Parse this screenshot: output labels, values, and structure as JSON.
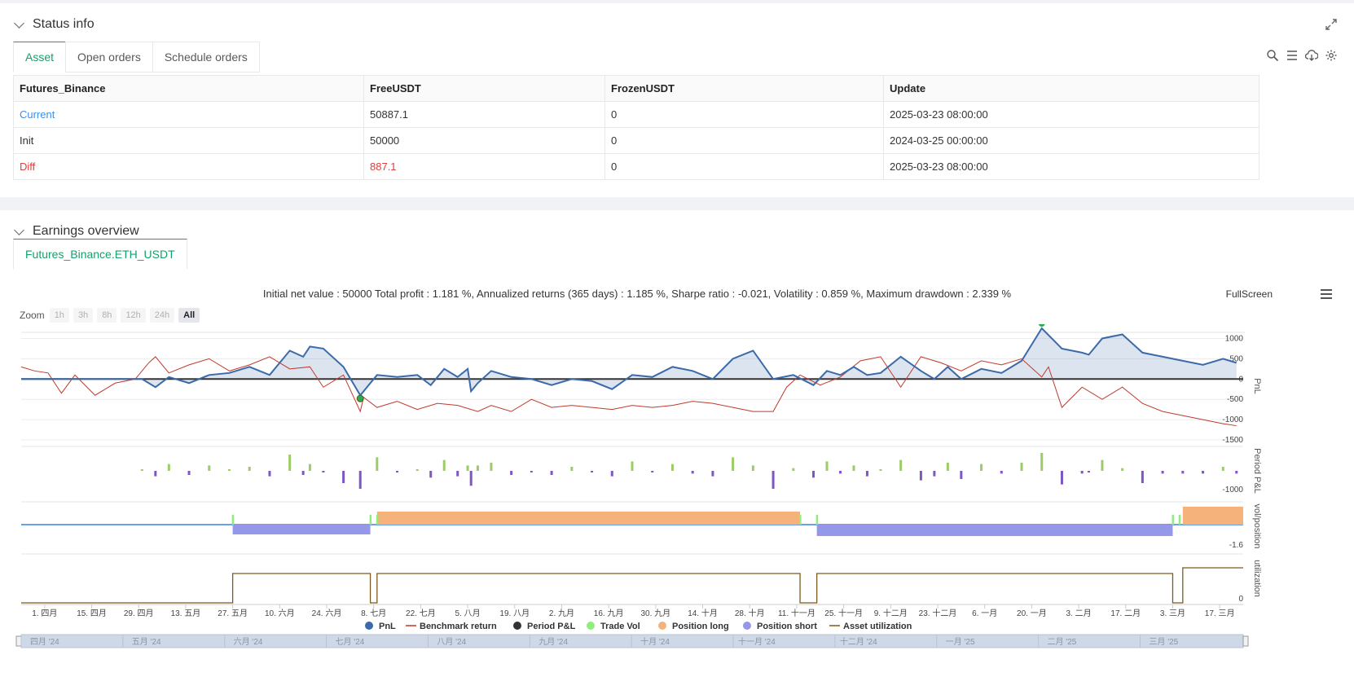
{
  "status": {
    "title": "Status info",
    "tabs": [
      "Asset",
      "Open orders",
      "Schedule orders"
    ],
    "table": {
      "headers": [
        "Futures_Binance",
        "FreeUSDT",
        "FrozenUSDT",
        "Update"
      ],
      "rows": [
        [
          "Current",
          "50887.1",
          "0",
          "2025-03-23 08:00:00"
        ],
        [
          "Init",
          "50000",
          "0",
          "2024-03-25 00:00:00"
        ],
        [
          "Diff",
          "887.1",
          "0",
          "2025-03-23 08:00:00"
        ]
      ]
    }
  },
  "earnings": {
    "title": "Earnings overview",
    "tab": "Futures_Binance.ETH_USDT",
    "summary": "Initial net value : 50000 Total profit : 1.181 %, Annualized returns (365 days) : 1.185 %, Sharpe ratio : -0.021, Volatility : 0.859 %, Maximum drawdown : 2.339 %",
    "fullscreen": "FullScreen",
    "zoom_label": "Zoom",
    "zoom_buttons": [
      "1h",
      "3h",
      "8h",
      "12h",
      "24h",
      "All"
    ]
  },
  "colors": {
    "accent": "#16a06b",
    "pnl": "#3b6aa8",
    "benchmark": "#c0392b",
    "long": "#f5b27a",
    "short": "#9597e8",
    "tradevol": "#90ee7e",
    "utilization": "#7a5c1e"
  },
  "chart_data": {
    "type": "line",
    "panels": [
      {
        "name": "PnL",
        "ticks": [
          1000,
          500,
          0,
          -500,
          -1000,
          -1500
        ],
        "ylim": [
          -1500,
          1150
        ]
      },
      {
        "name": "Period P&L",
        "ticks": [
          -1000
        ]
      },
      {
        "name": "vol/position",
        "ticks": [
          -1.6
        ]
      },
      {
        "name": "utilization",
        "ticks": [
          0
        ]
      }
    ],
    "x_ticks": [
      "1. 四月",
      "15. 四月",
      "29. 四月",
      "13. 五月",
      "27. 五月",
      "10. 六月",
      "24. 六月",
      "8. 七月",
      "22. 七月",
      "5. 八月",
      "19. 八月",
      "2. 九月",
      "16. 九月",
      "30. 九月",
      "14. 十月",
      "28. 十月",
      "11. 十一月",
      "25. 十一月",
      "9. 十二月",
      "23. 十二月",
      "6. 一月",
      "20. 一月",
      "3. 二月",
      "17. 二月",
      "3. 三月",
      "17. 三月"
    ],
    "navigator_labels": [
      "四月 '24",
      "五月 '24",
      "六月 '24",
      "七月 '24",
      "八月 '24",
      "九月 '24",
      "十月 '24",
      "十一月 '24",
      "十二月 '24",
      "一月 '25",
      "二月 '25",
      "三月 '25"
    ],
    "legend": [
      "PnL",
      "Benchmark return",
      "Period P&L",
      "Trade Vol",
      "Position long",
      "Position short",
      "Asset utilization"
    ],
    "series": [
      {
        "name": "PnL",
        "x_days": [
          0,
          36,
          40,
          44,
          50,
          56,
          62,
          68,
          74,
          80,
          84,
          86,
          90,
          96,
          101,
          106,
          112,
          118,
          122,
          126,
          130,
          133,
          134,
          136,
          140,
          146,
          152,
          158,
          164,
          170,
          176,
          182,
          188,
          194,
          200,
          206,
          212,
          218,
          224,
          230,
          236,
          240,
          244,
          248,
          252,
          256,
          262,
          268,
          272,
          276,
          280,
          286,
          292,
          298,
          304,
          310,
          316,
          318,
          322,
          328,
          334,
          340,
          346,
          352,
          358,
          362
        ],
        "values": [
          0,
          0,
          -200,
          50,
          -100,
          100,
          150,
          300,
          100,
          700,
          550,
          800,
          750,
          300,
          -400,
          100,
          50,
          100,
          -150,
          250,
          50,
          250,
          -300,
          -100,
          200,
          50,
          0,
          -150,
          0,
          -50,
          -250,
          100,
          50,
          300,
          200,
          0,
          500,
          700,
          0,
          100,
          -150,
          200,
          100,
          300,
          100,
          150,
          550,
          200,
          0,
          300,
          0,
          250,
          150,
          450,
          1250,
          750,
          650,
          600,
          1000,
          1100,
          650,
          550,
          450,
          350,
          500,
          400
        ]
      },
      {
        "name": "Benchmark return",
        "x_days": [
          0,
          4,
          8,
          12,
          16,
          22,
          28,
          34,
          38,
          40,
          44,
          50,
          56,
          62,
          68,
          74,
          80,
          86,
          90,
          96,
          101,
          102,
          106,
          112,
          118,
          124,
          130,
          136,
          140,
          146,
          152,
          158,
          164,
          170,
          176,
          182,
          188,
          194,
          200,
          206,
          212,
          218,
          224,
          228,
          232,
          238,
          244,
          250,
          256,
          262,
          268,
          274,
          280,
          286,
          292,
          298,
          304,
          306,
          310,
          316,
          322,
          328,
          334,
          340,
          346,
          352,
          358,
          362
        ],
        "values": [
          300,
          200,
          150,
          -350,
          100,
          -400,
          -100,
          0,
          400,
          550,
          150,
          350,
          500,
          200,
          350,
          550,
          250,
          300,
          -200,
          100,
          -800,
          -450,
          -700,
          -550,
          -750,
          -600,
          -650,
          -800,
          -650,
          -800,
          -500,
          -700,
          -650,
          -700,
          -750,
          -650,
          -700,
          -650,
          -550,
          -600,
          -700,
          -800,
          -800,
          -200,
          100,
          -150,
          50,
          450,
          550,
          -200,
          550,
          400,
          200,
          450,
          350,
          500,
          50,
          300,
          -700,
          -200,
          -500,
          -200,
          -600,
          -800,
          -900,
          -1000,
          -1100,
          -1150
        ]
      }
    ]
  }
}
